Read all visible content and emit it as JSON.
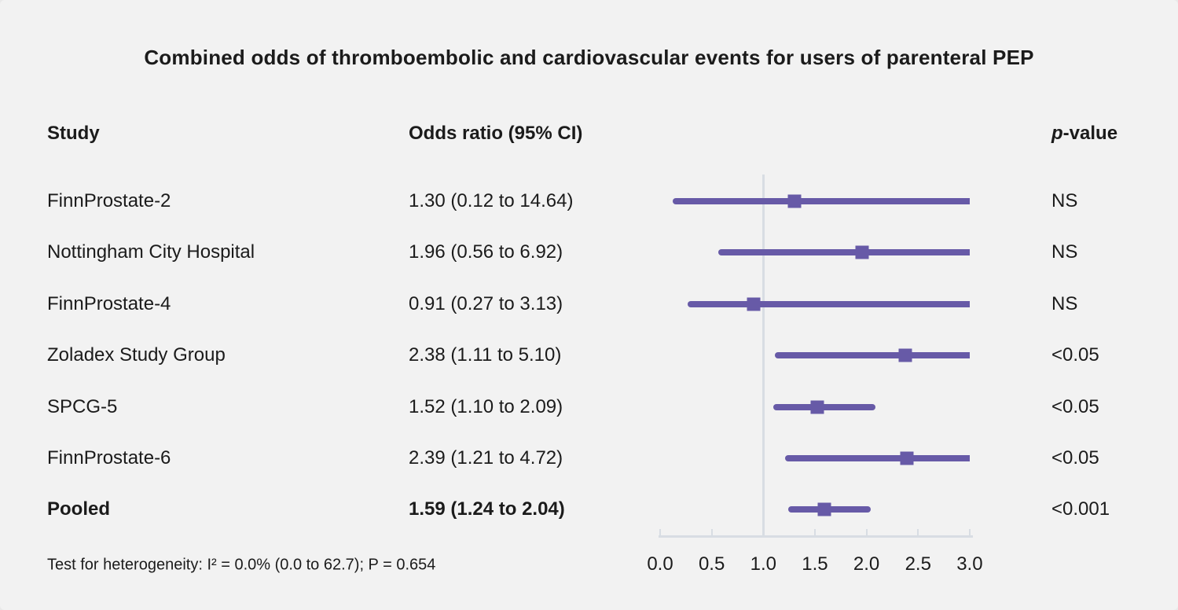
{
  "title": "Combined odds of thromboembolic and cardiovascular events for users of parenteral PEP",
  "columns": {
    "study": "Study",
    "odds_ratio": "Odds ratio (95% CI)",
    "p_value_italic": "p",
    "p_value_rest": "-value"
  },
  "footnote": "Test for heterogeneity: I² = 0.0% (0.0 to 62.7); P = 0.654",
  "colors": {
    "marker": "#675aa7",
    "reference_line": "#d8dde3",
    "axis": "#d8dde3",
    "background": "#f2f2f2"
  },
  "chart_data": {
    "type": "forest",
    "title": "Combined odds of thromboembolic and cardiovascular events for users of parenteral PEP",
    "xlabel": "Odds ratio",
    "xlim": [
      0.0,
      3.0
    ],
    "x_tick_labels": [
      "0.0",
      "0.5",
      "1.0",
      "1.5",
      "2.0",
      "2.5",
      "3.0"
    ],
    "x_tick_values": [
      0.0,
      0.5,
      1.0,
      1.5,
      2.0,
      2.5,
      3.0
    ],
    "reference_value": 1.0,
    "rows": [
      {
        "study": "FinnProstate-2",
        "or_text": "1.30 (0.12 to 14.64)",
        "or": 1.3,
        "ci_low": 0.12,
        "ci_high": 14.64,
        "p": "NS",
        "bold": false
      },
      {
        "study": "Nottingham City Hospital",
        "or_text": "1.96 (0.56 to 6.92)",
        "or": 1.96,
        "ci_low": 0.56,
        "ci_high": 6.92,
        "p": "NS",
        "bold": false
      },
      {
        "study": "FinnProstate-4",
        "or_text": "0.91 (0.27 to 3.13)",
        "or": 0.91,
        "ci_low": 0.27,
        "ci_high": 3.13,
        "p": "NS",
        "bold": false
      },
      {
        "study": "Zoladex Study Group",
        "or_text": "2.38 (1.11 to 5.10)",
        "or": 2.38,
        "ci_low": 1.11,
        "ci_high": 5.1,
        "p": "<0.05",
        "bold": false
      },
      {
        "study": "SPCG-5",
        "or_text": "1.52 (1.10 to 2.09)",
        "or": 1.52,
        "ci_low": 1.1,
        "ci_high": 2.09,
        "p": "<0.05",
        "bold": false
      },
      {
        "study": "FinnProstate-6",
        "or_text": "2.39 (1.21 to 4.72)",
        "or": 2.39,
        "ci_low": 1.21,
        "ci_high": 4.72,
        "p": "<0.05",
        "bold": false
      },
      {
        "study": "Pooled",
        "or_text": "1.59 (1.24 to 2.04)",
        "or": 1.59,
        "ci_low": 1.24,
        "ci_high": 2.04,
        "p": "<0.001",
        "bold": true
      }
    ]
  }
}
